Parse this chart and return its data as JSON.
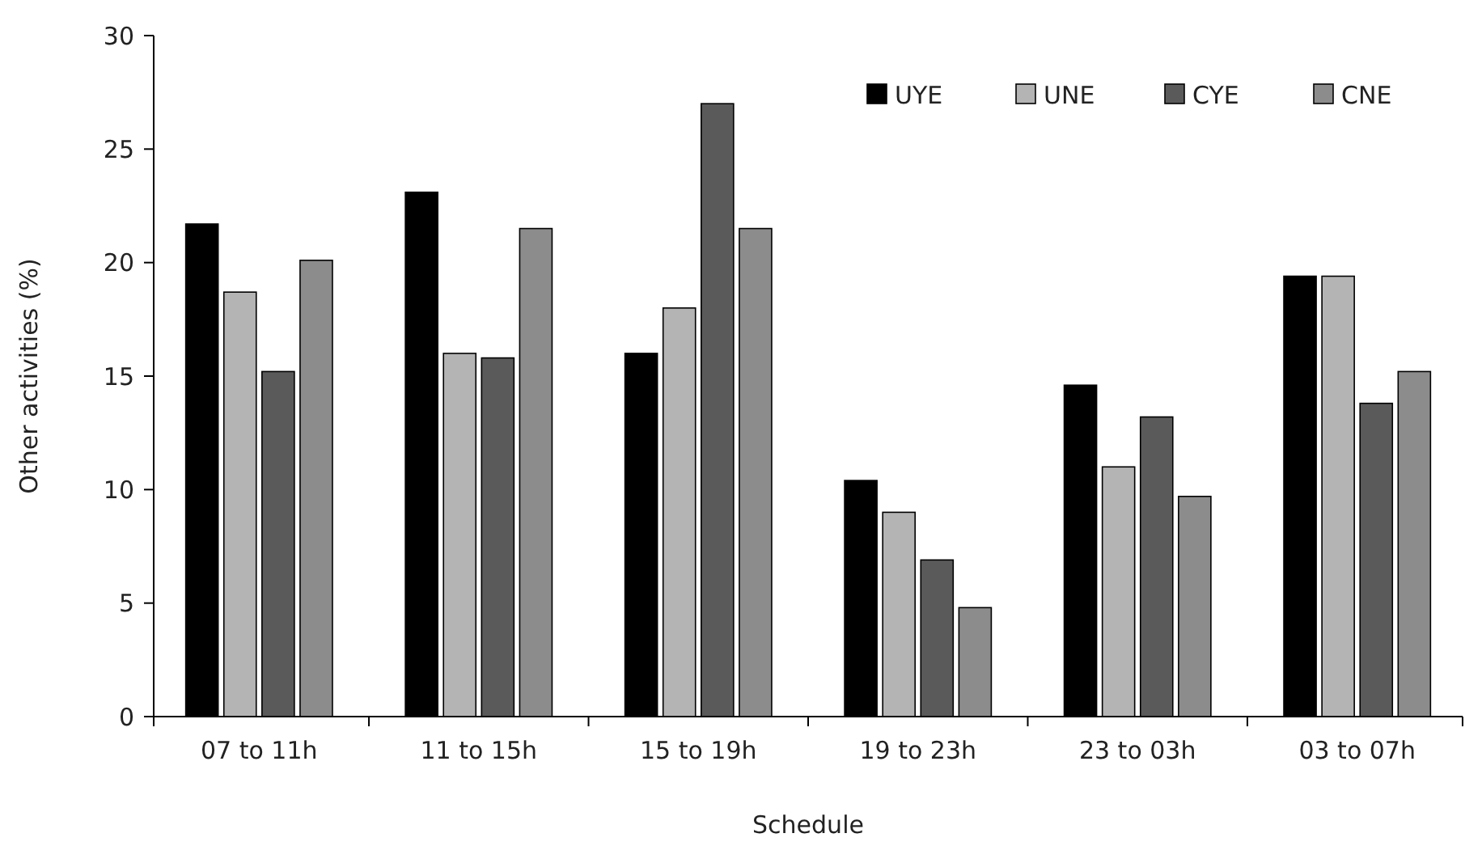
{
  "chart_data": {
    "type": "bar",
    "xlabel": "Schedule",
    "ylabel": "Other activities (%)",
    "categories": [
      "07 to 11h",
      "11 to 15h",
      "15 to 19h",
      "19 to 23h",
      "23 to 03h",
      "03 to 07h"
    ],
    "series": [
      {
        "name": "UYE",
        "color": "#000000",
        "values": [
          21.7,
          23.1,
          16.0,
          10.4,
          14.6,
          19.4
        ]
      },
      {
        "name": "UNE",
        "color": "#b4b4b4",
        "values": [
          18.7,
          16.0,
          18.0,
          9.0,
          11.0,
          19.4
        ]
      },
      {
        "name": "CYE",
        "color": "#5a5a5a",
        "values": [
          15.2,
          15.8,
          27.0,
          6.9,
          13.2,
          13.8
        ]
      },
      {
        "name": "CNE",
        "color": "#8c8c8c",
        "values": [
          20.1,
          21.5,
          21.5,
          4.8,
          9.7,
          15.2
        ]
      }
    ],
    "ylim": [
      0,
      30
    ],
    "yticks": [
      0,
      5,
      10,
      15,
      20,
      25,
      30
    ],
    "grid": false,
    "legend": "top right"
  }
}
